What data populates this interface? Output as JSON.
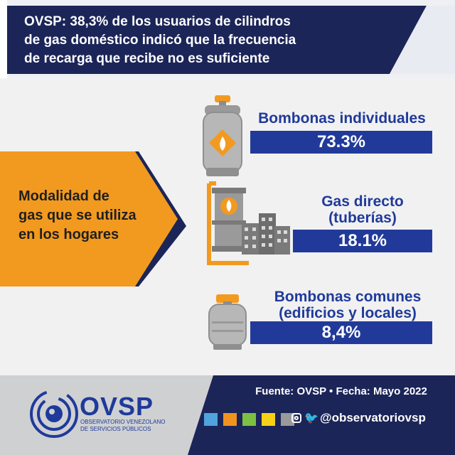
{
  "header": {
    "title_lines": [
      "OVSP: 38,3% de los usuarios de cilindros",
      "de gas doméstico indicó que la frecuencia",
      "de recarga que recibe no es suficiente"
    ]
  },
  "side_label": {
    "lines": [
      "Modalidad de",
      "gas que se utiliza",
      "en los hogares"
    ]
  },
  "categories": [
    {
      "title_lines": [
        "Bombonas individuales"
      ],
      "value": "73.3%",
      "icon": "gas-cylinder-icon"
    },
    {
      "title_lines": [
        "Gas directo",
        "(tuberías)"
      ],
      "value": "18.1%",
      "icon": "gas-pipeline-buildings-icon"
    },
    {
      "title_lines": [
        "Bombonas comunes",
        "(edificios y locales)"
      ],
      "value": "8,4%",
      "icon": "large-gas-tank-icon"
    }
  ],
  "footer": {
    "source": "Fuente: OVSP  •  Fecha: Mayo 2022",
    "social_handle": "@observatoriovsp",
    "social_icons": [
      "instagram-icon",
      "twitter-icon"
    ],
    "color_squares": [
      "#4fa3de",
      "#f0931e",
      "#7cc142",
      "#f7d117",
      "#9a9a9a"
    ]
  },
  "logo": {
    "text": "OVSP",
    "sub_line1": "OBSERVATORIO VENEZOLANO",
    "sub_line2": "DE SERVICIOS PÚBLICOS"
  },
  "colors": {
    "navy": "#1c2558",
    "blue": "#213a9a",
    "orange": "#f29a1f",
    "gray": "#cfd0d2"
  }
}
